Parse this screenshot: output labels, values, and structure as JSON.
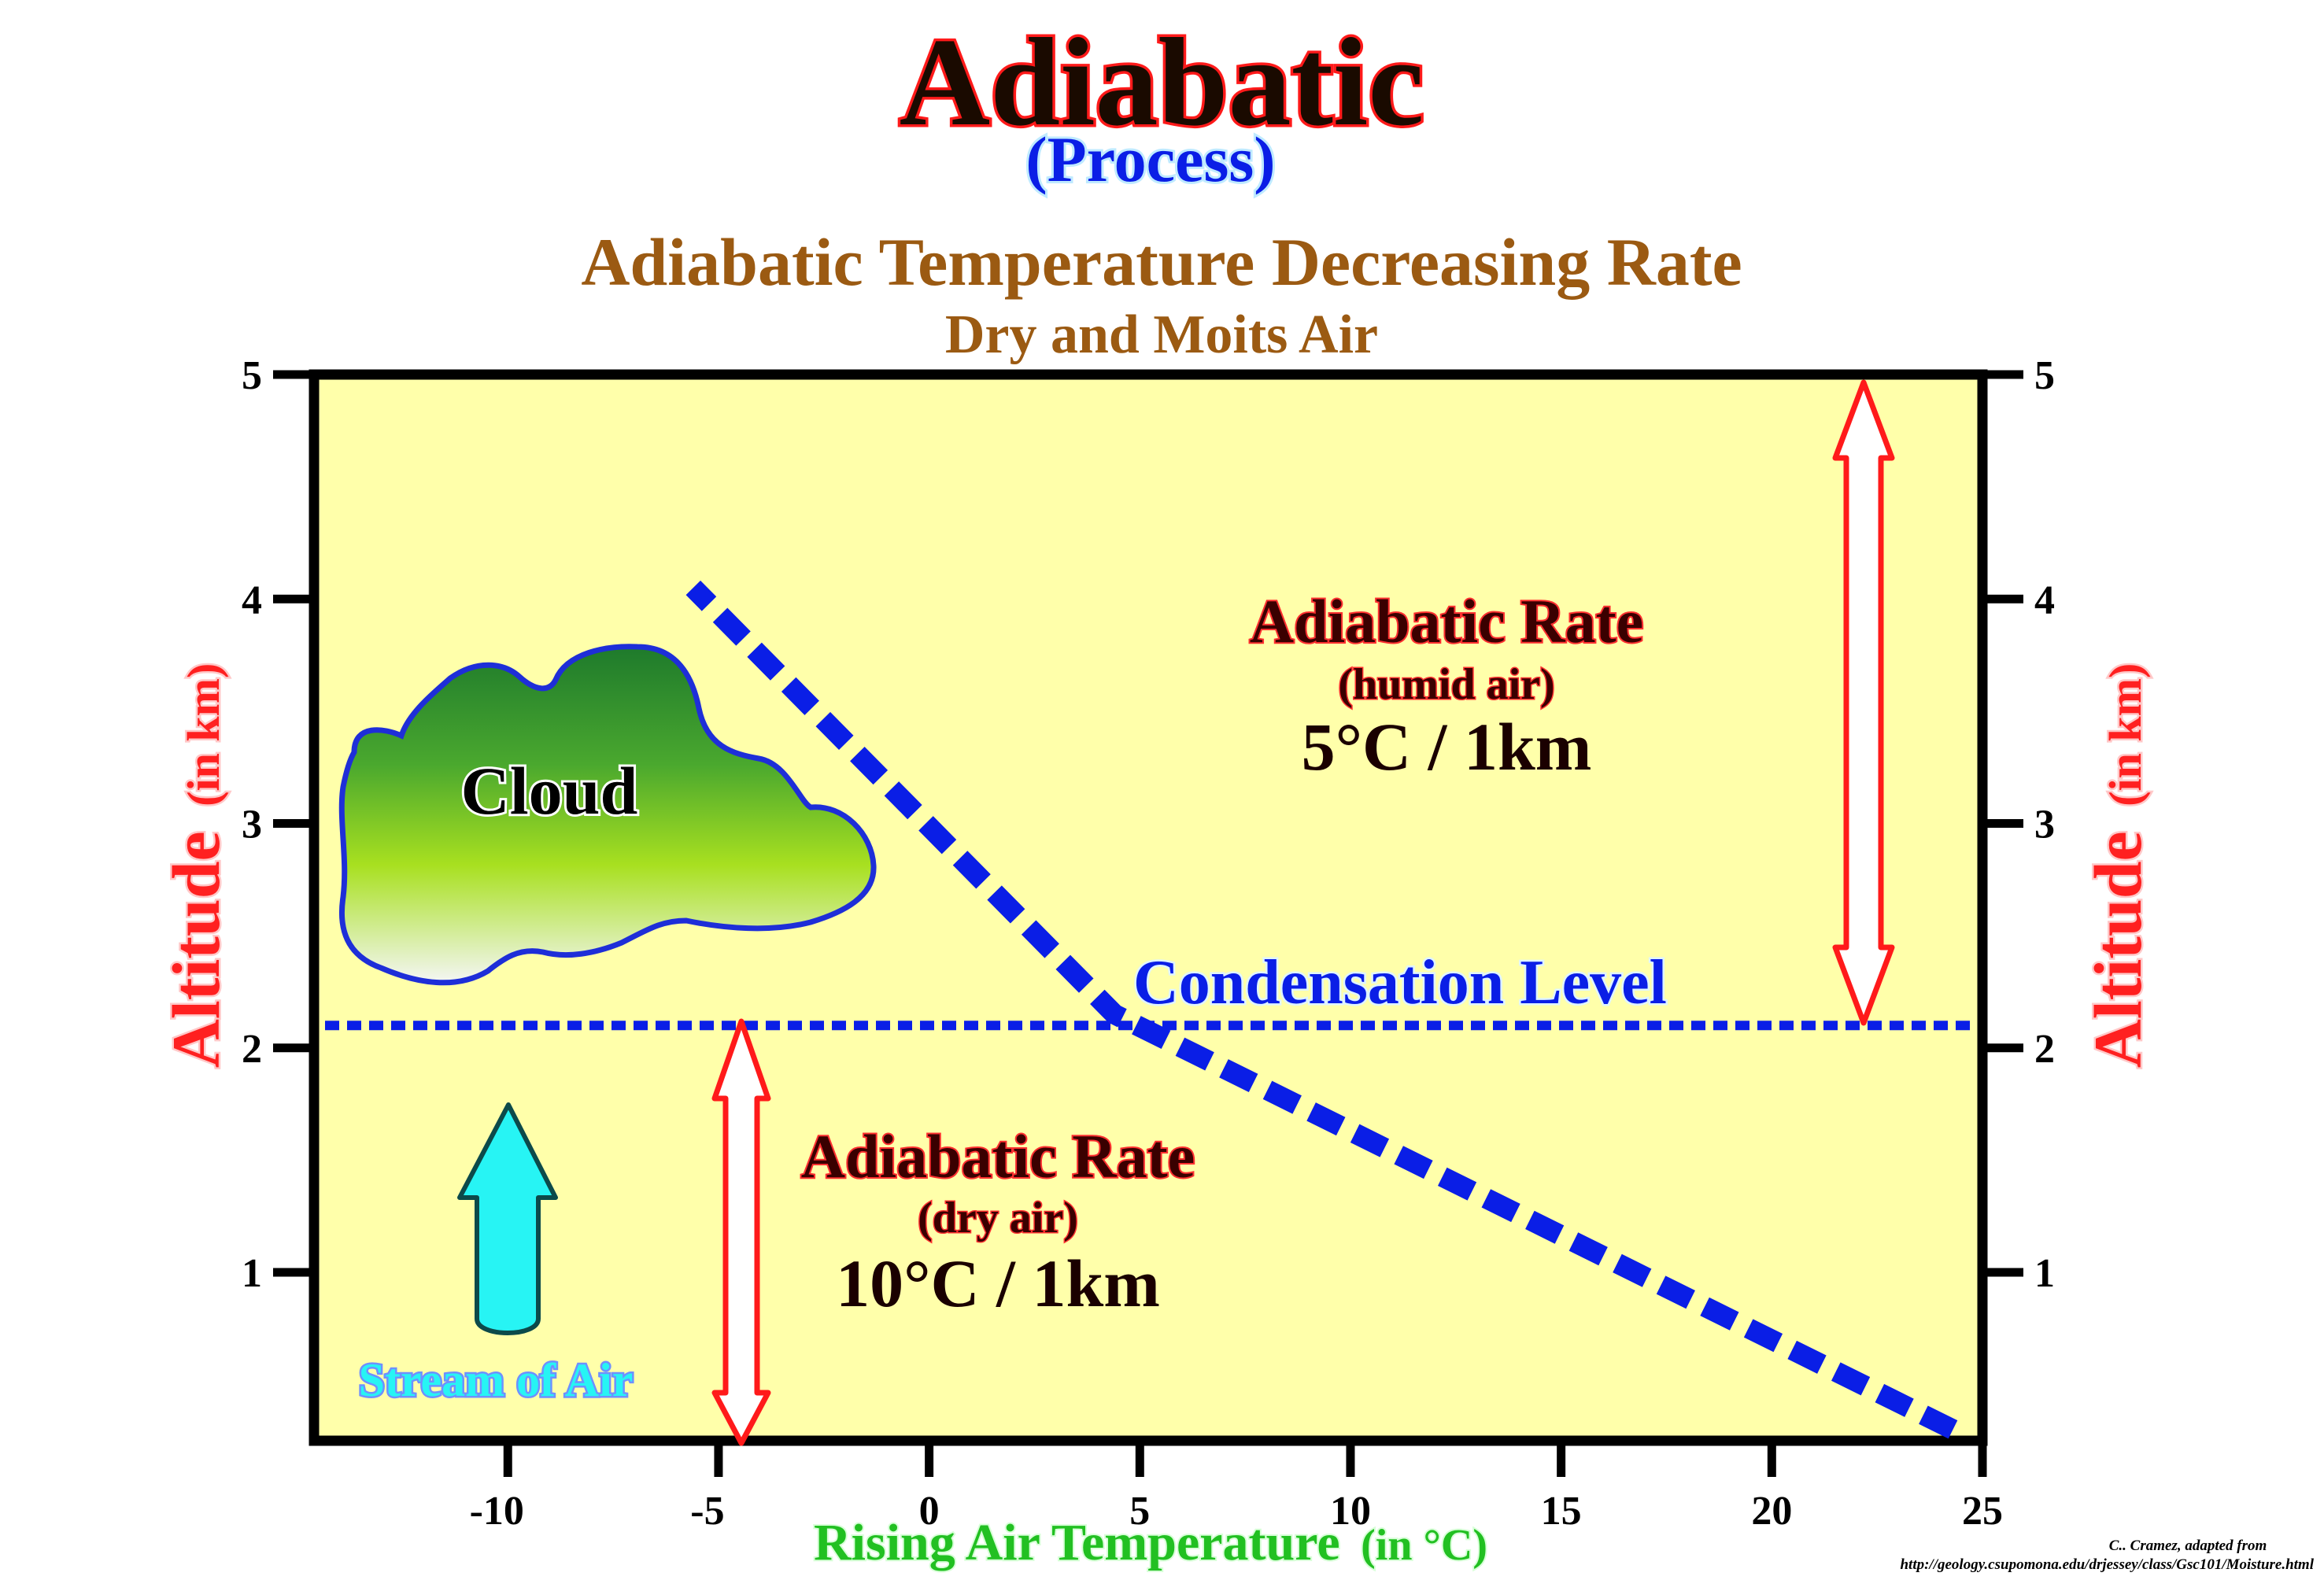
{
  "header": {
    "title": "Adiabatic",
    "subtitle": "(Process)",
    "chart_title": "Adiabatic Temperature Decreasing Rate",
    "chart_subtitle": "Dry and Moits Air"
  },
  "annotations": {
    "humid_title": "Adiabatic Rate",
    "humid_sub": "(humid air)",
    "humid_rate": "5°C / 1km",
    "dry_title": "Adiabatic Rate",
    "dry_sub": "(dry air)",
    "dry_rate": "10°C / 1km",
    "condensation": "Condensation Level",
    "cloud": "Cloud",
    "stream": "Stream of Air"
  },
  "axes": {
    "ylabel_main": "Altitude",
    "ylabel_unit": "(in km)",
    "xlabel_main": "Rising Air Temperature",
    "xlabel_unit": "(in °C)"
  },
  "credit": {
    "line1": "C.. Cramez, adapted from",
    "line2": "http://geology.csupomona.edu/drjessey/class/Gsc101/Moisture.html"
  },
  "colors": {
    "plot_bg": "#ffffaa",
    "title_red": "#ff1a1a",
    "brown": "#9b5a12",
    "blue": "#0a1ee6",
    "arrow_red": "#ff1a1a",
    "axis_red": "#ff2020",
    "green_label": "#22c022",
    "stream_cyan": "#27f4f4"
  },
  "chart_data": {
    "type": "line",
    "title": "Adiabatic Temperature Decreasing Rate",
    "subtitle": "Dry and Moits Air",
    "xlabel": "Rising Air Temperature (in °C)",
    "ylabel": "Altitude (in km)",
    "xlim": [
      -14.6,
      25
    ],
    "ylim": [
      0.25,
      5
    ],
    "x_ticks": [
      -10,
      -5,
      0,
      5,
      10,
      15,
      20,
      25
    ],
    "y_ticks": [
      1,
      2,
      3,
      4,
      5
    ],
    "grid": false,
    "series": [
      {
        "style": "dashed",
        "x": [
          24.3,
          4.4,
          -5.6
        ],
        "y": [
          0.3,
          2.15,
          4.05
        ]
      }
    ],
    "condensation_level": 2.1
  }
}
